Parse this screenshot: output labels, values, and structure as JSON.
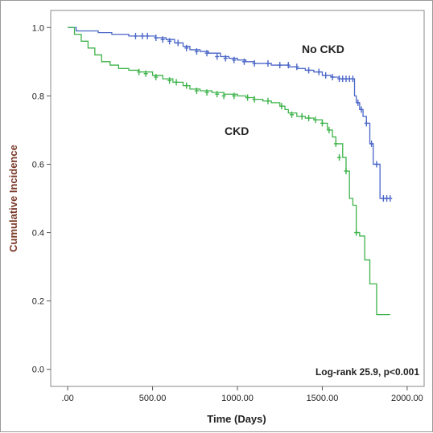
{
  "chart_data": {
    "type": "line",
    "title": "",
    "xlabel": "Time (Days)",
    "ylabel": "Cumulative Incidence",
    "xlim": [
      -100,
      2100
    ],
    "ylim": [
      -0.05,
      1.05
    ],
    "xticks": [
      0,
      500,
      1000,
      1500,
      2000
    ],
    "xtick_labels": [
      ".00",
      "500.00",
      "1000.00",
      "1500.00",
      "2000.00"
    ],
    "yticks": [
      0.0,
      0.2,
      0.4,
      0.6,
      0.8,
      1.0
    ],
    "ytick_labels": [
      "0.0",
      "0.2",
      "0.4",
      "0.6",
      "0.8",
      "1.0"
    ],
    "annotation": "Log-rank 25.9, p<0.001",
    "grid": false,
    "series": [
      {
        "name": "No CKD",
        "color": "#4a66c8",
        "x": [
          0,
          50,
          100,
          180,
          260,
          300,
          360,
          420,
          480,
          520,
          580,
          630,
          680,
          720,
          780,
          830,
          900,
          950,
          1000,
          1050,
          1100,
          1150,
          1200,
          1260,
          1300,
          1350,
          1400,
          1450,
          1500,
          1550,
          1600,
          1650,
          1690,
          1700,
          1720,
          1740,
          1760,
          1780,
          1800,
          1840,
          1900
        ],
        "y": [
          1.0,
          0.99,
          0.99,
          0.985,
          0.98,
          0.98,
          0.975,
          0.975,
          0.975,
          0.97,
          0.965,
          0.955,
          0.945,
          0.935,
          0.93,
          0.925,
          0.915,
          0.91,
          0.905,
          0.9,
          0.895,
          0.895,
          0.89,
          0.89,
          0.885,
          0.88,
          0.875,
          0.87,
          0.86,
          0.855,
          0.85,
          0.85,
          0.8,
          0.78,
          0.76,
          0.74,
          0.72,
          0.66,
          0.6,
          0.5,
          0.5
        ],
        "censor_x": [
          400,
          440,
          470,
          520,
          560,
          600,
          650,
          700,
          760,
          820,
          880,
          930,
          980,
          1040,
          1100,
          1180,
          1250,
          1300,
          1350,
          1420,
          1480,
          1520,
          1560,
          1600,
          1620,
          1640,
          1660,
          1680,
          1710,
          1730,
          1760,
          1790,
          1820,
          1860,
          1880,
          1900
        ],
        "censor_y": [
          0.975,
          0.975,
          0.975,
          0.97,
          0.965,
          0.96,
          0.955,
          0.94,
          0.93,
          0.925,
          0.915,
          0.91,
          0.905,
          0.9,
          0.895,
          0.895,
          0.89,
          0.89,
          0.885,
          0.875,
          0.87,
          0.86,
          0.855,
          0.85,
          0.85,
          0.85,
          0.85,
          0.85,
          0.78,
          0.76,
          0.72,
          0.66,
          0.6,
          0.5,
          0.5,
          0.5
        ]
      },
      {
        "name": "CKD",
        "color": "#3db34a",
        "x": [
          0,
          40,
          80,
          120,
          160,
          200,
          250,
          300,
          360,
          420,
          500,
          560,
          620,
          680,
          720,
          780,
          850,
          920,
          1000,
          1050,
          1100,
          1150,
          1200,
          1250,
          1280,
          1300,
          1350,
          1400,
          1450,
          1500,
          1530,
          1560,
          1580,
          1620,
          1640,
          1660,
          1680,
          1700,
          1720,
          1750,
          1780,
          1820,
          1850,
          1900
        ],
        "y": [
          1.0,
          0.98,
          0.96,
          0.94,
          0.92,
          0.9,
          0.89,
          0.88,
          0.875,
          0.87,
          0.86,
          0.85,
          0.84,
          0.83,
          0.82,
          0.815,
          0.81,
          0.805,
          0.8,
          0.795,
          0.79,
          0.785,
          0.78,
          0.77,
          0.76,
          0.75,
          0.74,
          0.735,
          0.73,
          0.72,
          0.7,
          0.68,
          0.66,
          0.62,
          0.58,
          0.5,
          0.48,
          0.4,
          0.39,
          0.32,
          0.25,
          0.16,
          0.16,
          0.16
        ],
        "censor_x": [
          420,
          460,
          520,
          600,
          640,
          700,
          760,
          820,
          880,
          920,
          980,
          1060,
          1100,
          1180,
          1260,
          1320,
          1380,
          1420,
          1460,
          1500,
          1540,
          1580,
          1600,
          1640,
          1700
        ],
        "censor_y": [
          0.87,
          0.865,
          0.855,
          0.845,
          0.84,
          0.83,
          0.815,
          0.81,
          0.805,
          0.8,
          0.8,
          0.795,
          0.79,
          0.785,
          0.77,
          0.745,
          0.74,
          0.735,
          0.73,
          0.72,
          0.7,
          0.66,
          0.62,
          0.58,
          0.4
        ]
      }
    ]
  }
}
